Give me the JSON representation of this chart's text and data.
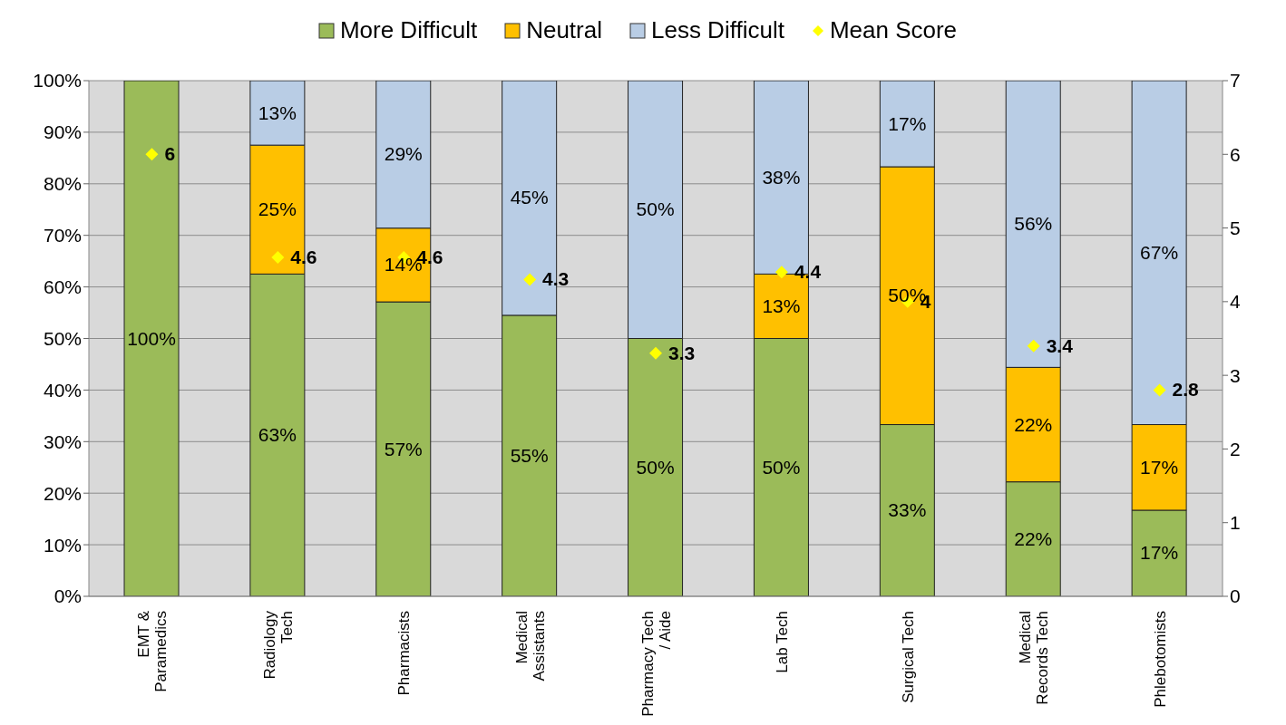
{
  "chart_data": {
    "type": "bar",
    "stacked": true,
    "categories": [
      "EMT & Paramedics",
      "Radiology Tech",
      "Pharmacists",
      "Medical Assistants",
      "Pharmacy Tech / Aide",
      "Lab Tech",
      "Surgical Tech",
      "Medical Records Tech",
      "Phlebotomists"
    ],
    "series": [
      {
        "name": "More Difficult",
        "color": "#9bbb59",
        "values": [
          100,
          62.5,
          57.1,
          54.5,
          50,
          50,
          33.3,
          22.2,
          16.7
        ],
        "value_labels": [
          "100%",
          "63%",
          "57%",
          "55%",
          "50%",
          "50%",
          "33%",
          "22%",
          "17%"
        ]
      },
      {
        "name": "Neutral",
        "color": "#ffc000",
        "values": [
          0,
          25,
          14.3,
          0,
          0,
          12.5,
          50,
          22.2,
          16.6
        ],
        "value_labels": [
          null,
          "25%",
          "14%",
          null,
          null,
          "13%",
          "50%",
          "22%",
          "17%"
        ]
      },
      {
        "name": "Less Difficult",
        "color": "#b9cde5",
        "values": [
          0,
          12.5,
          28.6,
          45.5,
          50,
          37.5,
          16.7,
          55.6,
          66.7
        ],
        "value_labels": [
          null,
          "13%",
          "29%",
          "45%",
          "50%",
          "38%",
          "17%",
          "56%",
          "67%"
        ]
      },
      {
        "name": "Mean Score",
        "type": "scatter",
        "axis": "y2",
        "color": "#ffff00",
        "marker": "diamond",
        "data_labels": true,
        "values": [
          6,
          4.6,
          4.6,
          4.3,
          3.3,
          4.4,
          4,
          3.4,
          2.8
        ]
      }
    ],
    "ylim": [
      0,
      100
    ],
    "yticks": [
      {
        "value": 0,
        "label": "0%"
      },
      {
        "value": 10,
        "label": "10%"
      },
      {
        "value": 20,
        "label": "20%"
      },
      {
        "value": 30,
        "label": "30%"
      },
      {
        "value": 40,
        "label": "40%"
      },
      {
        "value": 50,
        "label": "50%"
      },
      {
        "value": 60,
        "label": "60%"
      },
      {
        "value": 70,
        "label": "70%"
      },
      {
        "value": 80,
        "label": "80%"
      },
      {
        "value": 90,
        "label": "90%"
      },
      {
        "value": 100,
        "label": "100%"
      }
    ],
    "y2lim": [
      0,
      7
    ],
    "y2ticks": [
      0,
      1,
      2,
      3,
      4,
      5,
      6,
      7
    ],
    "grid": "y",
    "legend": "top"
  }
}
